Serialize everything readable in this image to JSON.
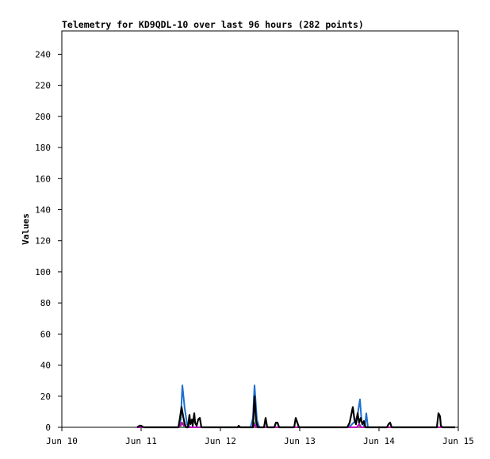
{
  "chart_data": {
    "type": "line",
    "title": "Telemetry for KD9QDL-10 over last 96 hours (282 points)",
    "xlabel": "",
    "ylabel": "Values",
    "ylim": [
      0,
      255
    ],
    "yticks": [
      0,
      20,
      40,
      60,
      80,
      100,
      120,
      140,
      160,
      180,
      200,
      220,
      240
    ],
    "xlim": [
      0,
      5
    ],
    "xticks": [
      {
        "value": 0,
        "label": "Jun 10"
      },
      {
        "value": 1,
        "label": "Jun 11"
      },
      {
        "value": 2,
        "label": "Jun 12"
      },
      {
        "value": 3,
        "label": "Jun 13"
      },
      {
        "value": 4,
        "label": "Jun 14"
      },
      {
        "value": 5,
        "label": "Jun 15"
      }
    ],
    "grid": false,
    "legend": "none",
    "series": [
      {
        "color": "#1f6fd0",
        "points": [
          [
            0.95,
            0
          ],
          [
            1.0,
            0
          ],
          [
            1.47,
            0
          ],
          [
            1.5,
            5
          ],
          [
            1.52,
            27
          ],
          [
            1.55,
            12
          ],
          [
            1.58,
            2
          ],
          [
            1.62,
            0
          ],
          [
            2.38,
            0
          ],
          [
            2.41,
            6
          ],
          [
            2.43,
            27
          ],
          [
            2.46,
            5
          ],
          [
            2.49,
            0
          ],
          [
            3.62,
            0
          ],
          [
            3.7,
            4
          ],
          [
            3.73,
            8
          ],
          [
            3.76,
            18
          ],
          [
            3.78,
            4
          ],
          [
            3.82,
            0
          ],
          [
            3.84,
            9
          ],
          [
            3.86,
            0
          ],
          [
            4.8,
            0
          ],
          [
            4.96,
            0
          ]
        ]
      },
      {
        "color": "#2ca02c",
        "points": [
          [
            0.95,
            0
          ],
          [
            1.49,
            0
          ],
          [
            1.52,
            3
          ],
          [
            1.55,
            0
          ],
          [
            2.41,
            0
          ],
          [
            2.43,
            3
          ],
          [
            2.45,
            0
          ],
          [
            3.72,
            0
          ],
          [
            3.75,
            2
          ],
          [
            3.78,
            0
          ],
          [
            4.96,
            0
          ]
        ]
      },
      {
        "color": "#c000c0",
        "points": [
          [
            0.95,
            0
          ],
          [
            1.0,
            0
          ],
          [
            1.48,
            0
          ],
          [
            1.51,
            3
          ],
          [
            1.54,
            1
          ],
          [
            1.57,
            0
          ],
          [
            2.41,
            0
          ],
          [
            2.43,
            2
          ],
          [
            2.45,
            0
          ],
          [
            3.72,
            0
          ],
          [
            3.75,
            2
          ],
          [
            3.77,
            0
          ],
          [
            4.96,
            0
          ]
        ]
      },
      {
        "color": "#000000",
        "points": [
          [
            0.95,
            0
          ],
          [
            0.98,
            1
          ],
          [
            1.0,
            1
          ],
          [
            1.03,
            0
          ],
          [
            1.47,
            0
          ],
          [
            1.49,
            6
          ],
          [
            1.51,
            13
          ],
          [
            1.53,
            7
          ],
          [
            1.55,
            2
          ],
          [
            1.57,
            0
          ],
          [
            1.59,
            0
          ],
          [
            1.61,
            8
          ],
          [
            1.62,
            2
          ],
          [
            1.64,
            5
          ],
          [
            1.65,
            1
          ],
          [
            1.67,
            9
          ],
          [
            1.68,
            3
          ],
          [
            1.7,
            1
          ],
          [
            1.72,
            5
          ],
          [
            1.74,
            6
          ],
          [
            1.76,
            0
          ],
          [
            2.22,
            0
          ],
          [
            2.23,
            1
          ],
          [
            2.25,
            0
          ],
          [
            2.41,
            0
          ],
          [
            2.43,
            20
          ],
          [
            2.45,
            4
          ],
          [
            2.47,
            0
          ],
          [
            2.55,
            0
          ],
          [
            2.57,
            6
          ],
          [
            2.59,
            0
          ],
          [
            2.68,
            0
          ],
          [
            2.7,
            3
          ],
          [
            2.72,
            3
          ],
          [
            2.74,
            0
          ],
          [
            2.93,
            0
          ],
          [
            2.95,
            6
          ],
          [
            2.97,
            3
          ],
          [
            2.99,
            0
          ],
          [
            3.6,
            0
          ],
          [
            3.63,
            3
          ],
          [
            3.65,
            8
          ],
          [
            3.67,
            13
          ],
          [
            3.69,
            5
          ],
          [
            3.71,
            2
          ],
          [
            3.73,
            9
          ],
          [
            3.75,
            3
          ],
          [
            3.77,
            6
          ],
          [
            3.79,
            2
          ],
          [
            3.81,
            4
          ],
          [
            3.83,
            0
          ],
          [
            4.1,
            0
          ],
          [
            4.12,
            2
          ],
          [
            4.14,
            3
          ],
          [
            4.16,
            0
          ],
          [
            4.73,
            0
          ],
          [
            4.75,
            9
          ],
          [
            4.77,
            7
          ],
          [
            4.78,
            1
          ],
          [
            4.8,
            0
          ],
          [
            4.9,
            0
          ],
          [
            4.96,
            0
          ]
        ]
      }
    ]
  }
}
